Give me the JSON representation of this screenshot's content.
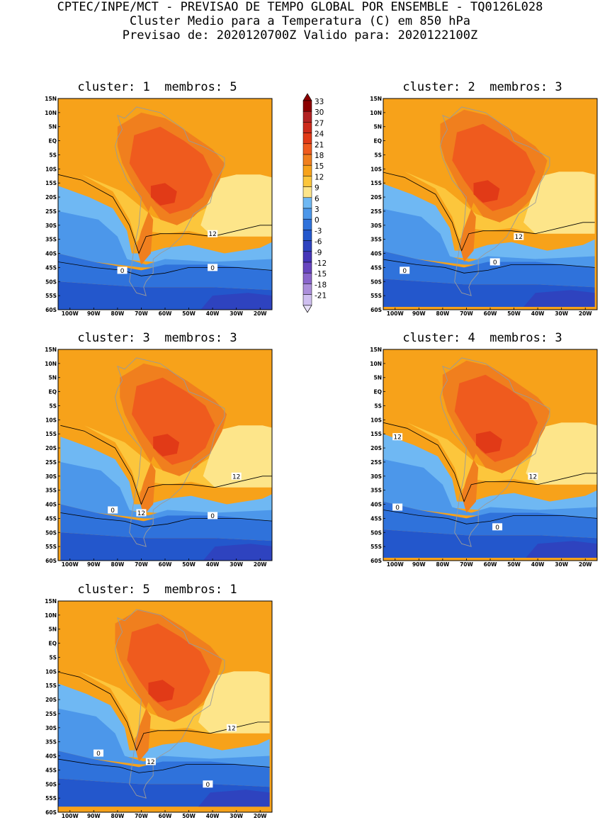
{
  "header": {
    "line1": "CPTEC/INPE/MCT - PREVISAO DE TEMPO GLOBAL POR ENSEMBLE - TQ0126L028",
    "line2": "Cluster Medio para a Temperatura (C) em 850 hPa",
    "line3": "Previsao de: 2020120700Z   Valido para: 2020122100Z"
  },
  "panels": [
    {
      "title": "cluster: 1  membros: 5"
    },
    {
      "title": "cluster: 2  membros: 3"
    },
    {
      "title": "cluster: 3  membros: 3"
    },
    {
      "title": "cluster: 4  membros: 3"
    },
    {
      "title": "cluster: 5  membros: 1"
    }
  ],
  "map_axes": {
    "lat_labels": [
      "15N",
      "10N",
      "5N",
      "EQ",
      "5S",
      "10S",
      "15S",
      "20S",
      "25S",
      "30S",
      "35S",
      "40S",
      "45S",
      "50S",
      "55S",
      "60S"
    ],
    "lon_labels": [
      "100W",
      "90W",
      "80W",
      "70W",
      "60W",
      "50W",
      "40W",
      "30W",
      "20W"
    ]
  },
  "colorbar": {
    "labels": [
      "33",
      "30",
      "27",
      "24",
      "21",
      "18",
      "15",
      "12",
      "9",
      "6",
      "3",
      "0",
      "-3",
      "-6",
      "-9",
      "-12",
      "-15",
      "-18",
      "-21"
    ],
    "colors": [
      "#8b0000",
      "#b22222",
      "#cc2a1a",
      "#e13a17",
      "#ef5b1e",
      "#f07f1e",
      "#f7a21a",
      "#fcc63c",
      "#fde58a",
      "#6fb8f3",
      "#4c97ea",
      "#2f72db",
      "#2357cc",
      "#2e43bf",
      "#4636b8",
      "#6846bf",
      "#8a66cc",
      "#ac8fdb",
      "#cfbff0"
    ]
  },
  "contour_labels": {
    "p1": [
      "12",
      "0",
      "0"
    ],
    "p2": [
      "12",
      "0",
      "0"
    ],
    "p3": [
      "12",
      "12",
      "0",
      "0"
    ],
    "p4": [
      "12",
      "12",
      "0",
      "0"
    ],
    "p5": [
      "12",
      "12",
      "0",
      "0"
    ]
  }
}
